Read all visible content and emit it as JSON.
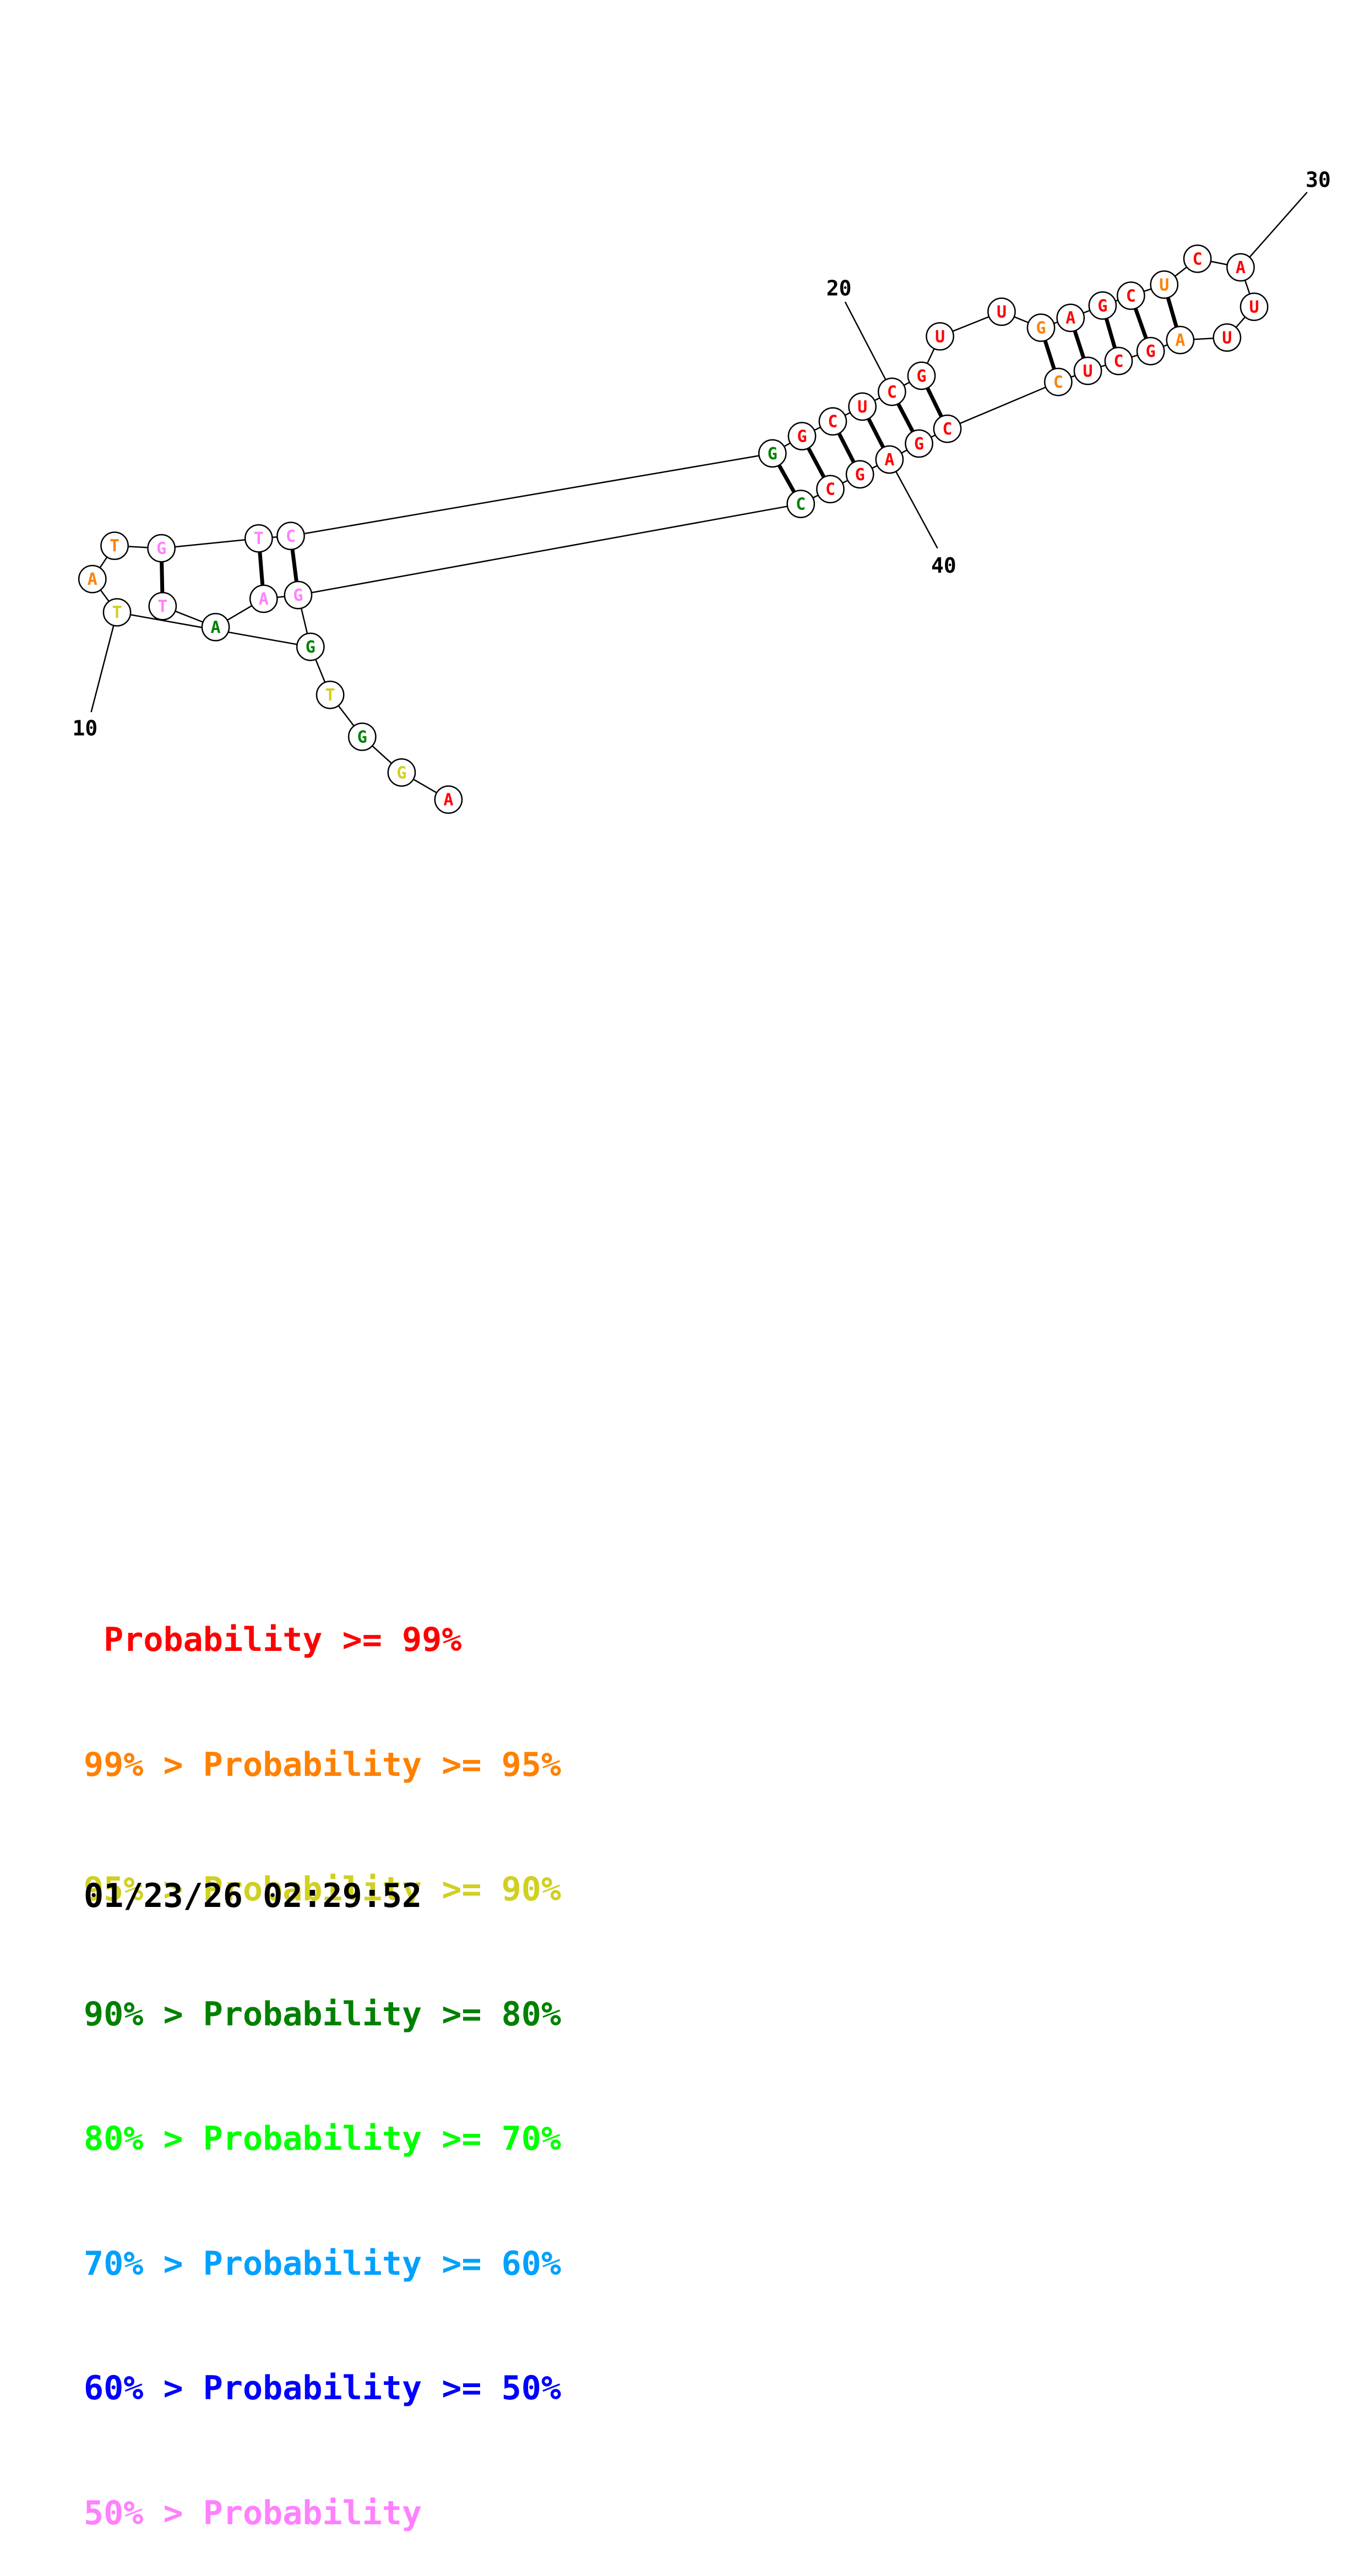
{
  "colors": {
    "red": "#ff0000",
    "orange": "#ff8000",
    "yellow": "#d0d020",
    "dkgreen": "#008000",
    "green": "#00ff00",
    "cyan": "#00a0ff",
    "blue": "#0000ff",
    "pink": "#ff80ff"
  },
  "diagram": {
    "nucleotides": [
      {
        "base": "A",
        "color": "orange"
      },
      {
        "base": "T",
        "color": "orange"
      },
      {
        "base": "G",
        "color": "pink"
      },
      {
        "base": "T",
        "color": "pink"
      },
      {
        "base": "C",
        "color": "pink"
      },
      {
        "base": "G",
        "color": "dkgreen"
      },
      {
        "base": "G",
        "color": "red"
      },
      {
        "base": "C",
        "color": "red"
      },
      {
        "base": "U",
        "color": "red"
      },
      {
        "base": "C",
        "color": "red"
      },
      {
        "base": "G",
        "color": "red"
      },
      {
        "base": "U",
        "color": "red"
      },
      {
        "base": "U",
        "color": "red"
      },
      {
        "base": "G",
        "color": "orange"
      },
      {
        "base": "A",
        "color": "red"
      },
      {
        "base": "G",
        "color": "red"
      },
      {
        "base": "C",
        "color": "red"
      },
      {
        "base": "U",
        "color": "orange"
      },
      {
        "base": "C",
        "color": "red"
      },
      {
        "base": "A",
        "color": "red"
      },
      {
        "base": "U",
        "color": "red"
      },
      {
        "base": "U",
        "color": "red"
      },
      {
        "base": "A",
        "color": "orange"
      },
      {
        "base": "G",
        "color": "red"
      },
      {
        "base": "C",
        "color": "red"
      },
      {
        "base": "U",
        "color": "red"
      },
      {
        "base": "C",
        "color": "orange"
      },
      {
        "base": "C",
        "color": "red"
      },
      {
        "base": "G",
        "color": "red"
      },
      {
        "base": "A",
        "color": "red"
      },
      {
        "base": "G",
        "color": "red"
      },
      {
        "base": "C",
        "color": "red"
      },
      {
        "base": "C",
        "color": "dkgreen"
      },
      {
        "base": "G",
        "color": "pink"
      },
      {
        "base": "A",
        "color": "pink"
      },
      {
        "base": "A",
        "color": "dkgreen"
      },
      {
        "base": "T",
        "color": "pink"
      },
      {
        "base": "T",
        "color": "yellow"
      },
      {
        "base": "G",
        "color": "dkgreen"
      },
      {
        "base": "T",
        "color": "yellow"
      },
      {
        "base": "G",
        "color": "dkgreen"
      },
      {
        "base": "G",
        "color": "yellow"
      },
      {
        "base": "A",
        "color": "red"
      }
    ],
    "position_numbers": [
      "10",
      "20",
      "30",
      "40"
    ]
  },
  "legend": [
    {
      "prefix": "",
      "label": "Probability",
      "suffix": ">= 99%",
      "color": "red"
    },
    {
      "prefix": "99% >",
      "label": "Probability",
      "suffix": ">= 95%",
      "color": "orange"
    },
    {
      "prefix": "95% >",
      "label": "Probability",
      "suffix": ">= 90%",
      "color": "yellow"
    },
    {
      "prefix": "90% >",
      "label": "Probability",
      "suffix": ">= 80%",
      "color": "dkgreen"
    },
    {
      "prefix": "80% >",
      "label": "Probability",
      "suffix": ">= 70%",
      "color": "green"
    },
    {
      "prefix": "70% >",
      "label": "Probability",
      "suffix": ">= 60%",
      "color": "cyan"
    },
    {
      "prefix": "60% >",
      "label": "Probability",
      "suffix": ">= 50%",
      "color": "blue"
    },
    {
      "prefix": "50% >",
      "label": "Probability",
      "suffix": "",
      "color": "pink"
    }
  ],
  "timestamp": "01/23/26 02:29:52"
}
